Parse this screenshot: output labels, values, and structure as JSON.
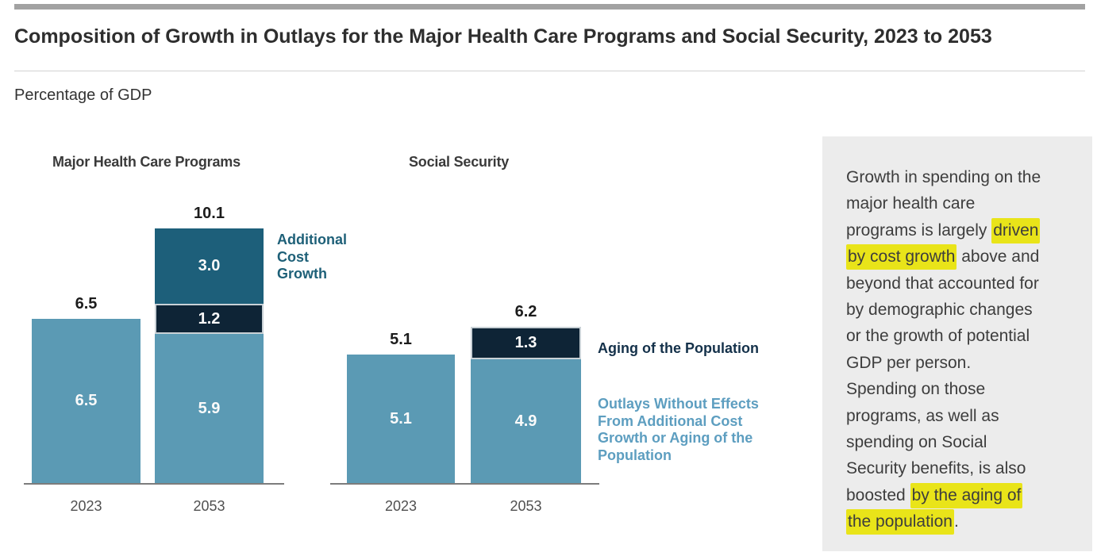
{
  "header": {
    "title": "Composition of Growth in Outlays for the Major Health Care Programs and Social Security, 2023 to 2053",
    "unit_label": "Percentage of GDP"
  },
  "colors": {
    "accent_bar": "#a2a2a2",
    "note_background": "#ececec",
    "highlight_yellow": "#e9e419",
    "axis_gray": "#7c7c7c"
  },
  "chart_data": {
    "type": "bar",
    "title": "Composition of Growth in Outlays for the Major Health Care Programs and Social Security, 2023 to 2053",
    "ylabel": "Percentage of GDP",
    "grid": false,
    "legend_position": "right-of-bars",
    "groups": [
      {
        "name": "Major Health Care Programs",
        "categories": [
          "2023",
          "2053"
        ],
        "bars": [
          {
            "year": "2023",
            "total": 6.5,
            "total_label": "6.5",
            "segments": [
              {
                "series": "base",
                "value": 6.5,
                "label": "6.5"
              }
            ]
          },
          {
            "year": "2053",
            "total": 10.1,
            "total_label": "10.1",
            "segments": [
              {
                "series": "base",
                "value": 5.9,
                "label": "5.9"
              },
              {
                "series": "aging",
                "value": 1.2,
                "label": "1.2"
              },
              {
                "series": "cost",
                "value": 3.0,
                "label": "3.0"
              }
            ]
          }
        ]
      },
      {
        "name": "Social Security",
        "categories": [
          "2023",
          "2053"
        ],
        "bars": [
          {
            "year": "2023",
            "total": 5.1,
            "total_label": "5.1",
            "segments": [
              {
                "series": "base",
                "value": 5.1,
                "label": "5.1"
              }
            ]
          },
          {
            "year": "2053",
            "total": 6.2,
            "total_label": "6.2",
            "segments": [
              {
                "series": "base",
                "value": 4.9,
                "label": "4.9"
              },
              {
                "series": "aging",
                "value": 1.3,
                "label": "1.3"
              }
            ]
          }
        ]
      }
    ],
    "series": [
      {
        "id": "cost",
        "name": "Additional Cost Growth",
        "color": "#1d5f7a",
        "label_color": "#1e6078",
        "label_lines": [
          "Additional",
          "Cost",
          "Growth"
        ]
      },
      {
        "id": "aging",
        "name": "Aging of the Population",
        "color": "#0e2436",
        "label_color": "#14314a",
        "label_lines": [
          "Aging of the Population"
        ]
      },
      {
        "id": "base",
        "name": "Outlays Without Effects From Additional Cost Growth or Aging of the Population",
        "color": "#5b9ab4",
        "label_color": "#5d9ec0",
        "label_lines": [
          "Outlays Without Effects",
          "From Additional Cost",
          "Growth or Aging of the",
          "Population"
        ]
      }
    ]
  },
  "note": {
    "lines": [
      [
        {
          "t": "Growth in spending on the"
        }
      ],
      [
        {
          "t": "major health care"
        }
      ],
      [
        {
          "t": "programs is largely "
        },
        {
          "t": "driven",
          "hl": true
        }
      ],
      [
        {
          "t": "by cost growth",
          "hl": true
        },
        {
          "t": " above and"
        }
      ],
      [
        {
          "t": "beyond that accounted for"
        }
      ],
      [
        {
          "t": "by demographic changes"
        }
      ],
      [
        {
          "t": "or the growth of potential"
        }
      ],
      [
        {
          "t": "GDP per person."
        }
      ],
      [
        {
          "t": "Spending on those"
        }
      ],
      [
        {
          "t": "programs, as well as"
        }
      ],
      [
        {
          "t": "spending on Social"
        }
      ],
      [
        {
          "t": "Security benefits, is also"
        }
      ],
      [
        {
          "t": "boosted "
        },
        {
          "t": "by the aging of",
          "hl": true
        }
      ],
      [
        {
          "t": "the population",
          "hl": true
        },
        {
          "t": "."
        }
      ]
    ]
  }
}
